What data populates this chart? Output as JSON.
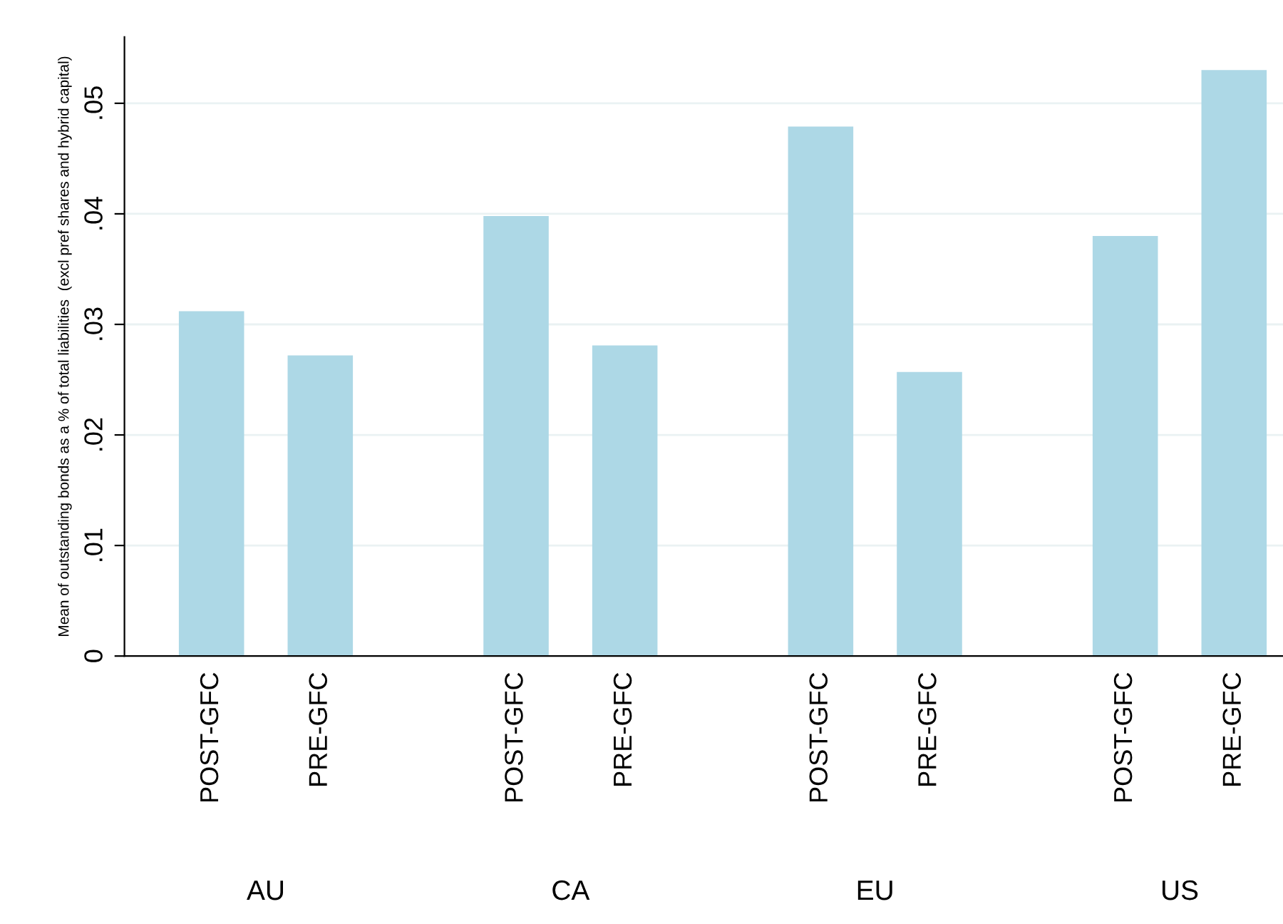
{
  "chart_data": {
    "type": "bar",
    "ylabel": "Mean of outstanding bonds as a % of total liabilities  (excl pref shares and hybrid capital)",
    "categories": [
      "POST-GFC",
      "PRE-GFC",
      "POST-GFC",
      "PRE-GFC",
      "POST-GFC",
      "PRE-GFC",
      "POST-GFC",
      "PRE-GFC"
    ],
    "values": [
      0.0312,
      0.0272,
      0.0398,
      0.0281,
      0.0479,
      0.0257,
      0.038,
      0.053
    ],
    "color": "#add8e6",
    "annotations": [
      "AU",
      "CA",
      "EU",
      "US"
    ],
    "ylim": [
      0,
      0.056
    ],
    "yticks": [
      0,
      {
        "value": 0.01,
        "label": ".01"
      },
      {
        "value": 0.02,
        "label": ".02"
      },
      {
        "value": 0.03,
        "label": ".03"
      },
      {
        "value": 0.04,
        "label": ".04"
      },
      {
        "value": 0.05,
        "label": ".05"
      }
    ],
    "grid": "y"
  }
}
